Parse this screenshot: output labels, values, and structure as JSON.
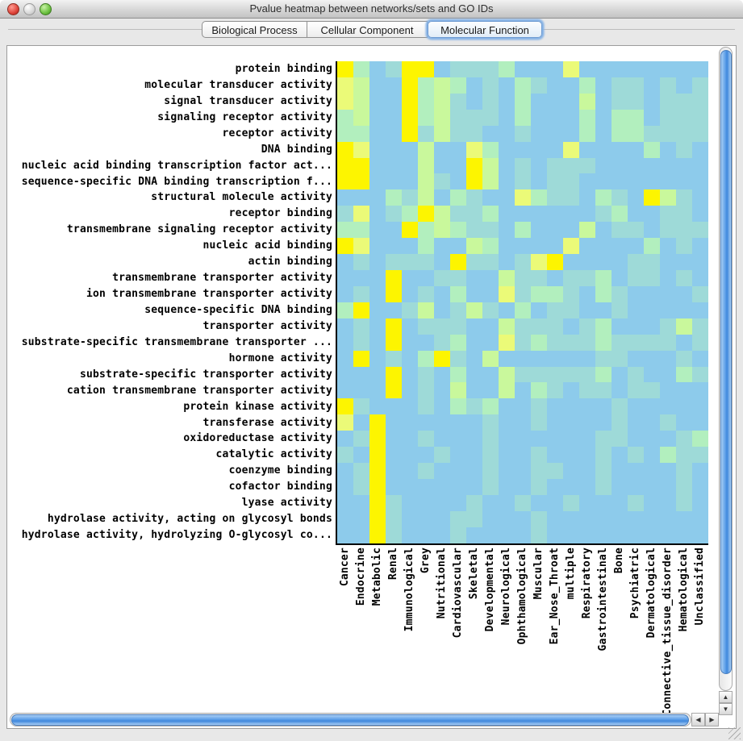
{
  "window": {
    "title": "Pvalue heatmap between networks/sets and GO IDs"
  },
  "tabs": [
    {
      "label": "Biological Process",
      "selected": false
    },
    {
      "label": "Cellular Component",
      "selected": false
    },
    {
      "label": "Molecular Function",
      "selected": true
    }
  ],
  "scrollbar_icons": {
    "up": "▲",
    "down": "▼",
    "left": "◀",
    "right": "▶"
  },
  "chart_data": {
    "type": "heatmap",
    "title": "Pvalue heatmap between networks/sets and GO IDs (Molecular Function tab)",
    "rows": [
      "protein binding",
      "molecular transducer activity",
      "signal transducer activity",
      "signaling receptor activity",
      "receptor activity",
      "DNA binding",
      "nucleic acid binding transcription factor act...",
      "sequence-specific DNA binding transcription f...",
      "structural molecule activity",
      "receptor binding",
      "transmembrane signaling receptor activity",
      "nucleic acid binding",
      "actin binding",
      "transmembrane transporter activity",
      "ion transmembrane transporter activity",
      "sequence-specific DNA binding",
      "transporter activity",
      "substrate-specific transmembrane transporter ...",
      "hormone activity",
      "substrate-specific transporter activity",
      "cation transmembrane transporter activity",
      "protein kinase activity",
      "transferase activity",
      "oxidoreductase activity",
      "catalytic activity",
      "coenzyme binding",
      "cofactor binding",
      "lyase activity",
      "hydrolase activity, acting on glycosyl bonds",
      "hydrolase activity, hydrolyzing O-glycosyl co..."
    ],
    "columns": [
      "Cancer",
      "Endocrine",
      "Metabolic",
      "Renal",
      "Immunological",
      "Grey",
      "Nutritional",
      "Cardiovascular",
      "Skeletal",
      "Developmental",
      "Neurological",
      "Ophthamological",
      "Muscular",
      "Ear_Nose_Throat",
      "multiple",
      "Respiratory",
      "Gastrointestinal",
      "Bone",
      "Psychiatric",
      "Dermatological",
      "Connective_tissue_disorder",
      "Hematological",
      "Unclassified"
    ],
    "palette": [
      "#8DCBEB",
      "#9EDAD8",
      "#B2EFBE",
      "#C9F89C",
      "#EBFA78",
      "#FDF500"
    ],
    "palette_note": "cells hold palette indices; 0 = blue (weakest association) through 5 = bright yellow (strongest association / lowest p-value)",
    "cells": [
      [
        5,
        2,
        0,
        1,
        5,
        5,
        0,
        1,
        1,
        1,
        2,
        0,
        0,
        0,
        4,
        0,
        0,
        0,
        0,
        0,
        0,
        0,
        0
      ],
      [
        4,
        3,
        0,
        0,
        5,
        2,
        3,
        2,
        0,
        1,
        0,
        2,
        1,
        0,
        0,
        2,
        0,
        1,
        1,
        0,
        1,
        0,
        1
      ],
      [
        4,
        3,
        0,
        0,
        5,
        2,
        3,
        1,
        0,
        1,
        0,
        2,
        0,
        0,
        0,
        3,
        0,
        1,
        1,
        0,
        1,
        1,
        1
      ],
      [
        2,
        3,
        0,
        0,
        5,
        2,
        3,
        1,
        1,
        1,
        0,
        2,
        0,
        0,
        0,
        2,
        0,
        2,
        2,
        0,
        1,
        1,
        1
      ],
      [
        2,
        2,
        0,
        0,
        5,
        1,
        3,
        1,
        1,
        0,
        0,
        1,
        0,
        0,
        0,
        2,
        0,
        2,
        2,
        1,
        1,
        1,
        1
      ],
      [
        5,
        4,
        0,
        0,
        0,
        3,
        0,
        0,
        4,
        2,
        0,
        0,
        0,
        0,
        4,
        0,
        0,
        0,
        0,
        2,
        0,
        1,
        0
      ],
      [
        5,
        5,
        0,
        0,
        0,
        3,
        0,
        0,
        5,
        3,
        0,
        1,
        0,
        1,
        1,
        1,
        0,
        0,
        0,
        0,
        0,
        0,
        0
      ],
      [
        5,
        5,
        0,
        0,
        0,
        3,
        1,
        0,
        5,
        3,
        0,
        1,
        0,
        1,
        1,
        0,
        0,
        0,
        0,
        0,
        0,
        0,
        0
      ],
      [
        0,
        0,
        0,
        2,
        1,
        3,
        0,
        2,
        1,
        0,
        0,
        4,
        2,
        1,
        1,
        0,
        2,
        1,
        0,
        5,
        3,
        1,
        0
      ],
      [
        1,
        4,
        0,
        1,
        2,
        5,
        3,
        1,
        1,
        2,
        0,
        0,
        0,
        0,
        0,
        0,
        1,
        2,
        0,
        0,
        1,
        1,
        0
      ],
      [
        2,
        2,
        0,
        0,
        5,
        2,
        3,
        2,
        1,
        1,
        0,
        2,
        0,
        0,
        0,
        3,
        0,
        1,
        1,
        0,
        1,
        1,
        1
      ],
      [
        5,
        4,
        0,
        0,
        0,
        2,
        0,
        0,
        3,
        2,
        0,
        0,
        0,
        0,
        4,
        0,
        0,
        0,
        0,
        2,
        0,
        1,
        0
      ],
      [
        0,
        1,
        0,
        1,
        1,
        1,
        0,
        5,
        1,
        1,
        0,
        1,
        4,
        5,
        0,
        0,
        0,
        0,
        1,
        1,
        0,
        0,
        0
      ],
      [
        0,
        0,
        0,
        5,
        0,
        0,
        1,
        1,
        0,
        0,
        3,
        1,
        1,
        0,
        1,
        1,
        2,
        0,
        1,
        1,
        0,
        1,
        0
      ],
      [
        0,
        1,
        0,
        5,
        0,
        1,
        0,
        2,
        0,
        0,
        4,
        1,
        2,
        2,
        1,
        0,
        2,
        1,
        0,
        0,
        0,
        0,
        1
      ],
      [
        2,
        5,
        0,
        0,
        1,
        3,
        0,
        1,
        3,
        1,
        0,
        2,
        0,
        1,
        1,
        0,
        0,
        1,
        0,
        0,
        0,
        0,
        0
      ],
      [
        0,
        1,
        0,
        5,
        0,
        1,
        1,
        1,
        0,
        0,
        3,
        1,
        1,
        1,
        0,
        1,
        2,
        0,
        0,
        0,
        1,
        3,
        1
      ],
      [
        0,
        1,
        0,
        5,
        0,
        0,
        1,
        2,
        0,
        0,
        4,
        1,
        2,
        1,
        1,
        1,
        2,
        1,
        1,
        1,
        1,
        0,
        1
      ],
      [
        0,
        5,
        0,
        1,
        0,
        2,
        5,
        1,
        0,
        3,
        0,
        0,
        0,
        0,
        0,
        0,
        1,
        1,
        0,
        0,
        0,
        1,
        0
      ],
      [
        0,
        0,
        0,
        5,
        0,
        1,
        0,
        2,
        0,
        0,
        3,
        1,
        1,
        1,
        1,
        1,
        2,
        0,
        1,
        0,
        0,
        2,
        1
      ],
      [
        0,
        0,
        0,
        5,
        0,
        1,
        0,
        3,
        0,
        0,
        3,
        0,
        2,
        1,
        0,
        1,
        1,
        0,
        1,
        1,
        0,
        0,
        0
      ],
      [
        5,
        1,
        0,
        0,
        0,
        1,
        0,
        2,
        1,
        2,
        0,
        0,
        1,
        0,
        0,
        0,
        0,
        1,
        0,
        0,
        0,
        0,
        0
      ],
      [
        4,
        0,
        5,
        0,
        0,
        0,
        0,
        0,
        0,
        1,
        0,
        0,
        1,
        0,
        0,
        0,
        0,
        1,
        0,
        0,
        1,
        0,
        0
      ],
      [
        0,
        1,
        5,
        0,
        0,
        1,
        0,
        0,
        0,
        1,
        0,
        0,
        0,
        0,
        0,
        0,
        1,
        1,
        0,
        0,
        0,
        1,
        2
      ],
      [
        1,
        0,
        5,
        0,
        0,
        0,
        1,
        0,
        0,
        1,
        0,
        0,
        1,
        0,
        0,
        0,
        1,
        0,
        1,
        0,
        2,
        1,
        1
      ],
      [
        0,
        1,
        5,
        0,
        0,
        1,
        0,
        0,
        0,
        1,
        0,
        0,
        1,
        1,
        0,
        0,
        1,
        0,
        0,
        0,
        0,
        1,
        0
      ],
      [
        0,
        1,
        5,
        0,
        0,
        0,
        0,
        0,
        0,
        1,
        0,
        0,
        1,
        0,
        0,
        0,
        1,
        0,
        0,
        0,
        0,
        1,
        0
      ],
      [
        0,
        0,
        5,
        1,
        0,
        0,
        0,
        0,
        1,
        0,
        0,
        1,
        0,
        0,
        1,
        0,
        0,
        0,
        1,
        0,
        0,
        1,
        0
      ],
      [
        0,
        0,
        5,
        1,
        0,
        0,
        0,
        1,
        1,
        0,
        0,
        0,
        1,
        0,
        0,
        0,
        0,
        0,
        0,
        0,
        0,
        0,
        0
      ],
      [
        0,
        0,
        5,
        1,
        0,
        0,
        0,
        1,
        0,
        0,
        0,
        0,
        1,
        0,
        0,
        0,
        0,
        0,
        0,
        0,
        0,
        0,
        0
      ]
    ]
  }
}
